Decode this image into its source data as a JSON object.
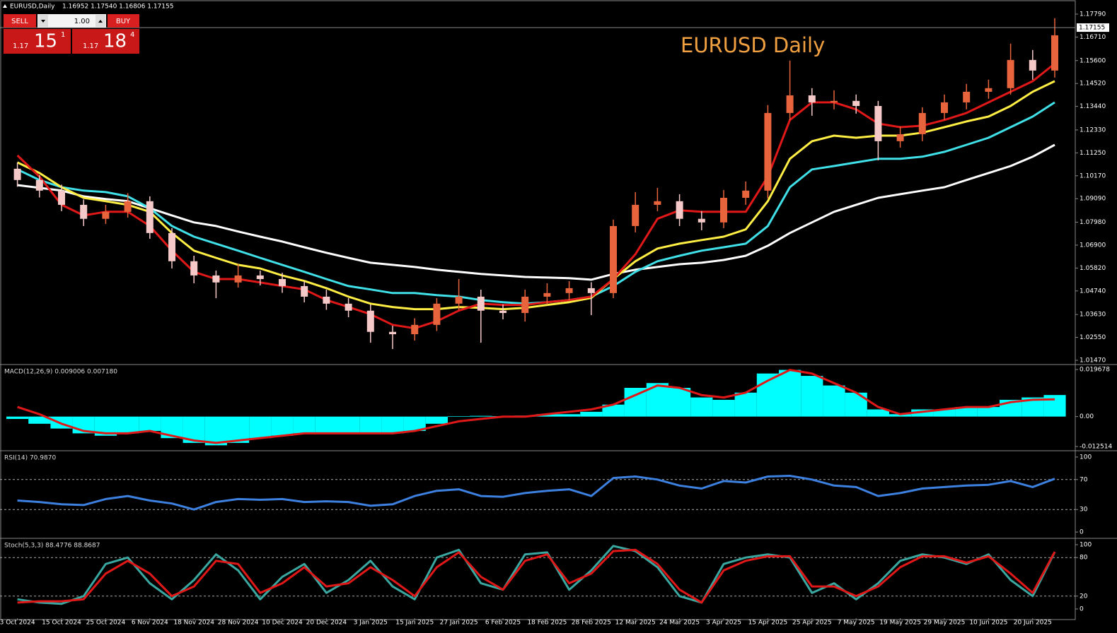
{
  "header": {
    "symbol": "EURUSD,Daily",
    "ohlc": "1.16952 1.17540 1.16806 1.17155"
  },
  "trade_panel": {
    "sell": "SELL",
    "buy": "BUY",
    "lot": "1.00",
    "bid": {
      "big": "1.17",
      "main": "15",
      "sup": "1"
    },
    "ask": {
      "big": "1.17",
      "main": "18",
      "sup": "4"
    }
  },
  "chart_data": [
    {
      "type": "candlestick",
      "title": "EURUSD Daily",
      "categories": [
        "3 Oct 2024",
        null,
        "15 Oct 2024",
        null,
        "25 Oct 2024",
        null,
        "6 Nov 2024",
        null,
        "18 Nov 2024",
        null,
        "28 Nov 2024",
        null,
        "10 Dec 2024",
        null,
        "20 Dec 2024",
        null,
        "3 Jan 2025",
        null,
        "15 Jan 2025",
        null,
        "27 Jan 2025",
        null,
        "6 Feb 2025",
        null,
        "18 Feb 2025",
        null,
        "28 Feb 2025",
        null,
        "12 Mar 2025",
        null,
        "24 Mar 2025",
        null,
        "3 Apr 2025",
        null,
        "15 Apr 2025",
        null,
        "25 Apr 2025",
        null,
        "7 May 2025",
        null,
        "19 May 2025",
        null,
        "29 May 2025",
        null,
        "10 Jun 2025",
        null,
        "20 Jun 2025",
        null
      ],
      "open": [
        1.105,
        1.0997,
        1.0947,
        1.088,
        1.0814,
        1.0847,
        1.0897,
        1.0747,
        1.0614,
        1.0547,
        1.0514,
        1.0547,
        1.053,
        1.0497,
        1.0447,
        1.0414,
        1.0381,
        1.0281,
        1.027,
        1.0314,
        1.0414,
        1.0447,
        1.0381,
        1.037,
        1.0447,
        1.0464,
        1.0487,
        1.0464,
        1.078,
        1.088,
        1.0897,
        1.0814,
        1.0797,
        1.0913,
        1.0947,
        1.1313,
        1.1396,
        1.1363,
        1.137,
        1.1346,
        1.118,
        1.1213,
        1.1313,
        1.1363,
        1.1413,
        1.143,
        1.1563,
        1.1513
      ],
      "high": [
        1.108,
        1.102,
        1.0975,
        1.0905,
        1.088,
        1.0935,
        1.092,
        1.077,
        1.064,
        1.057,
        1.06,
        1.057,
        1.056,
        1.052,
        1.048,
        1.044,
        1.041,
        1.031,
        1.0345,
        1.044,
        1.053,
        1.048,
        1.041,
        1.048,
        1.051,
        1.052,
        1.0515,
        1.081,
        1.094,
        1.096,
        1.093,
        1.085,
        1.095,
        1.099,
        1.135,
        1.156,
        1.143,
        1.142,
        1.14,
        1.137,
        1.125,
        1.134,
        1.14,
        1.145,
        1.147,
        1.164,
        1.161,
        1.176
      ],
      "low": [
        1.0965,
        1.0915,
        1.085,
        1.078,
        1.079,
        1.082,
        1.072,
        1.058,
        1.051,
        1.044,
        1.049,
        1.05,
        1.0465,
        1.042,
        1.0385,
        1.035,
        1.023,
        1.02,
        1.024,
        1.0285,
        1.0385,
        1.023,
        1.034,
        1.033,
        1.041,
        1.043,
        1.036,
        1.044,
        1.075,
        1.085,
        1.078,
        1.076,
        1.077,
        1.088,
        1.091,
        1.128,
        1.13,
        1.133,
        1.131,
        1.109,
        1.115,
        1.118,
        1.128,
        1.133,
        1.138,
        1.14,
        1.147,
        1.148
      ],
      "close": [
        1.0997,
        1.0947,
        1.088,
        1.0814,
        1.0847,
        1.0897,
        1.0747,
        1.0614,
        1.0547,
        1.0514,
        1.0547,
        1.053,
        1.0497,
        1.0447,
        1.0414,
        1.0381,
        1.0281,
        1.027,
        1.0314,
        1.0414,
        1.0447,
        1.0381,
        1.037,
        1.0447,
        1.0464,
        1.0487,
        1.0464,
        1.078,
        1.088,
        1.0897,
        1.0814,
        1.0797,
        1.0913,
        1.0947,
        1.1313,
        1.1396,
        1.1363,
        1.137,
        1.1346,
        1.118,
        1.1213,
        1.1313,
        1.1363,
        1.1413,
        1.143,
        1.1563,
        1.1513,
        1.1679
      ],
      "up_color": "#e8643c",
      "down_color": "#f6c9c9",
      "series": [
        {
          "color": "#ffffff",
          "values": [
            1.0973,
            1.096,
            1.0947,
            1.092,
            1.0907,
            1.0897,
            1.0864,
            1.083,
            1.0797,
            1.078,
            1.0754,
            1.073,
            1.0707,
            1.068,
            1.0654,
            1.063,
            1.0607,
            1.0597,
            1.0587,
            1.0574,
            1.0564,
            1.0554,
            1.0547,
            1.054,
            1.0537,
            1.0534,
            1.0527,
            1.0554,
            1.0574,
            1.0587,
            1.06,
            1.0607,
            1.062,
            1.064,
            1.0687,
            1.0747,
            1.0797,
            1.0847,
            1.088,
            1.0913,
            1.093,
            1.0947,
            1.0963,
            1.0997,
            1.103,
            1.1063,
            1.1107,
            1.1163
          ]
        },
        {
          "color": "#40e0e8",
          "values": [
            1.1047,
            1.0997,
            1.0963,
            1.0947,
            1.094,
            1.092,
            1.0864,
            1.078,
            1.073,
            1.0697,
            1.0664,
            1.063,
            1.0597,
            1.0564,
            1.053,
            1.0497,
            1.0481,
            1.0464,
            1.0464,
            1.0454,
            1.0447,
            1.0431,
            1.0421,
            1.0414,
            1.0421,
            1.0431,
            1.0447,
            1.0497,
            1.0564,
            1.0614,
            1.064,
            1.0664,
            1.068,
            1.0697,
            1.078,
            1.0963,
            1.1047,
            1.1063,
            1.108,
            1.1097,
            1.1097,
            1.1107,
            1.113,
            1.1163,
            1.1196,
            1.1246,
            1.1296,
            1.1363
          ]
        },
        {
          "color": "#ffee44",
          "values": [
            1.108,
            1.103,
            1.0963,
            1.0913,
            1.0897,
            1.088,
            1.0847,
            1.0747,
            1.0664,
            1.063,
            1.0597,
            1.058,
            1.0547,
            1.0521,
            1.0487,
            1.0447,
            1.0414,
            1.0398,
            1.0388,
            1.0388,
            1.0398,
            1.0394,
            1.0388,
            1.0394,
            1.0408,
            1.0421,
            1.0441,
            1.053,
            1.0614,
            1.0674,
            1.0697,
            1.0714,
            1.073,
            1.0764,
            1.0897,
            1.1097,
            1.118,
            1.1206,
            1.1196,
            1.1206,
            1.1206,
            1.122,
            1.1246,
            1.1273,
            1.1296,
            1.1346,
            1.1413,
            1.1463
          ]
        },
        {
          "color": "#e01818",
          "values": [
            1.1113,
            1.1013,
            1.088,
            1.083,
            1.0847,
            1.0847,
            1.078,
            1.0664,
            1.0564,
            1.053,
            1.053,
            1.0514,
            1.0497,
            1.0481,
            1.0431,
            1.0398,
            1.0364,
            1.0314,
            1.0298,
            1.0331,
            1.0381,
            1.0414,
            1.0408,
            1.0408,
            1.0421,
            1.0431,
            1.0447,
            1.053,
            1.0647,
            1.0814,
            1.0854,
            1.0847,
            1.0847,
            1.0847,
            1.1013,
            1.128,
            1.1363,
            1.1363,
            1.133,
            1.1263,
            1.1246,
            1.1253,
            1.128,
            1.1313,
            1.1363,
            1.1413,
            1.1463,
            1.1546
          ]
        }
      ],
      "last_price": 1.17155,
      "ylim": [
        1.01303,
        1.1839
      ],
      "yticks": [
        {
          "value": 1.1779,
          "label": "1.17790"
        },
        {
          "value": 1.1671,
          "label": "1.16710"
        },
        {
          "value": 1.156,
          "label": "1.15600"
        },
        {
          "value": 1.1452,
          "label": "1.14520"
        },
        {
          "value": 1.1344,
          "label": "1.13440"
        },
        {
          "value": 1.1233,
          "label": "1.12330"
        },
        {
          "value": 1.1125,
          "label": "1.11250"
        },
        {
          "value": 1.1017,
          "label": "1.10170"
        },
        {
          "value": 1.0909,
          "label": "1.09090"
        },
        {
          "value": 1.0798,
          "label": "1.07980"
        },
        {
          "value": 1.069,
          "label": "1.06900"
        },
        {
          "value": 1.0582,
          "label": "1.05820"
        },
        {
          "value": 1.0474,
          "label": "1.04740"
        },
        {
          "value": 1.0363,
          "label": "1.03630"
        },
        {
          "value": 1.0255,
          "label": "1.02550"
        },
        {
          "value": 1.0147,
          "label": "1.01470"
        }
      ]
    },
    {
      "type": "macd",
      "label": "MACD(12,26,9) 0.009006 0.007180",
      "series": [
        {
          "style": "histogram",
          "color": "#00ffff",
          "values": [
            -0.001,
            -0.003,
            -0.005,
            -0.007,
            -0.008,
            -0.007,
            -0.006,
            -0.009,
            -0.011,
            -0.012,
            -0.011,
            -0.009,
            -0.008,
            -0.007,
            -0.007,
            -0.007,
            -0.007,
            -0.007,
            -0.006,
            -0.003,
            0.0002,
            0.0003,
            0.0002,
            0.0004,
            0.001,
            0.001,
            0.002,
            0.005,
            0.012,
            0.014,
            0.012,
            0.008,
            0.007,
            0.01,
            0.018,
            0.0195,
            0.017,
            0.013,
            0.01,
            0.003,
            0.001,
            0.003,
            0.003,
            0.004,
            0.004,
            0.007,
            0.008,
            0.009006
          ]
        },
        {
          "style": "line",
          "color": "#e01818",
          "values": [
            0.004,
            0.001,
            -0.003,
            -0.006,
            -0.007,
            -0.007,
            -0.006,
            -0.008,
            -0.01,
            -0.011,
            -0.01,
            -0.009,
            -0.008,
            -0.007,
            -0.007,
            -0.007,
            -0.007,
            -0.007,
            -0.006,
            -0.004,
            -0.002,
            -0.001,
            0.0,
            0.0,
            0.001,
            0.002,
            0.003,
            0.005,
            0.009,
            0.013,
            0.012,
            0.009,
            0.008,
            0.01,
            0.015,
            0.0195,
            0.018,
            0.014,
            0.01,
            0.004,
            0.001,
            0.002,
            0.003,
            0.004,
            0.004,
            0.006,
            0.007,
            0.00718
          ]
        }
      ],
      "ylim": [
        -0.01368,
        0.02115
      ],
      "yticks": [
        0.019678,
        {
          "value": 0,
          "label": "0.00"
        },
        -0.012514
      ]
    },
    {
      "type": "line",
      "label": "RSI(14) 70.9870",
      "series": [
        {
          "color": "#3c80e0",
          "values": [
            42,
            40,
            37,
            36,
            44,
            48,
            42,
            38,
            30,
            40,
            44,
            43,
            44,
            40,
            41,
            40,
            35,
            37,
            48,
            55,
            57,
            48,
            47,
            52,
            55,
            57,
            48,
            72,
            74,
            70,
            62,
            58,
            68,
            66,
            74,
            75,
            70,
            62,
            60,
            48,
            52,
            58,
            60,
            62,
            63,
            68,
            60,
            70.987
          ]
        }
      ],
      "ylim": [
        -6.5,
        106.5
      ],
      "yticks": [
        100,
        70,
        30,
        0
      ],
      "grid": "dashed"
    },
    {
      "type": "line",
      "label": "Stoch(5,3,3) 88.4776 88.8687",
      "series": [
        {
          "color": "#3aa8a0",
          "values": [
            15,
            10,
            8,
            20,
            70,
            80,
            40,
            15,
            45,
            85,
            60,
            15,
            50,
            70,
            25,
            45,
            75,
            35,
            15,
            80,
            92,
            40,
            30,
            85,
            88,
            30,
            60,
            98,
            90,
            65,
            20,
            10,
            70,
            80,
            85,
            80,
            25,
            40,
            15,
            40,
            75,
            85,
            80,
            70,
            85,
            45,
            20,
            88.4776
          ]
        },
        {
          "color": "#e01818",
          "values": [
            10,
            12,
            12,
            15,
            55,
            75,
            55,
            20,
            35,
            75,
            70,
            25,
            40,
            65,
            35,
            40,
            65,
            45,
            20,
            65,
            88,
            50,
            30,
            75,
            85,
            40,
            55,
            90,
            92,
            70,
            30,
            10,
            60,
            75,
            82,
            82,
            35,
            35,
            20,
            35,
            65,
            82,
            82,
            72,
            82,
            55,
            25,
            88.8687
          ]
        }
      ],
      "ylim": [
        -14.3,
        107.7
      ],
      "yticks": [
        100,
        80,
        20,
        0
      ],
      "grid": "dashed"
    }
  ]
}
